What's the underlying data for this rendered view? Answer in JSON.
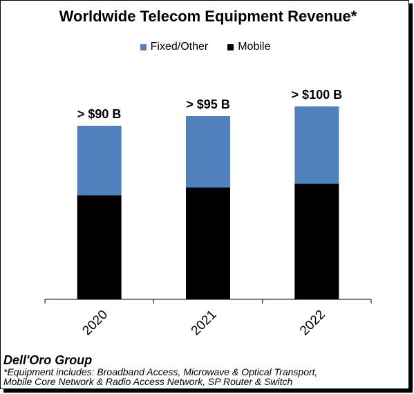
{
  "chart_data": {
    "type": "bar",
    "stacked": true,
    "title": "Worldwide Telecom Equipment Revenue*",
    "categories": [
      "2020",
      "2021",
      "2022"
    ],
    "series": [
      {
        "name": "Mobile",
        "color": "#000000",
        "values": [
          54,
          58,
          60
        ]
      },
      {
        "name": "Fixed/Other",
        "color": "#4F81BD",
        "values": [
          36,
          37,
          40
        ]
      }
    ],
    "totals": [
      90,
      95,
      100
    ],
    "data_labels": [
      "> $90 B",
      "> $95 B",
      "> $100 B"
    ],
    "legend_order": [
      "Fixed/Other",
      "Mobile"
    ],
    "legend_position": "top",
    "ylim": [
      0,
      110
    ],
    "xlabel": "",
    "ylabel": "",
    "grid": false
  },
  "source": "Dell'Oro Group",
  "footnote": {
    "line1": "*Equipment includes: Broadband Access, Microwave & Optical Transport,",
    "line2": "Mobile Core Network & Radio Access Network, SP Router & Switch"
  }
}
